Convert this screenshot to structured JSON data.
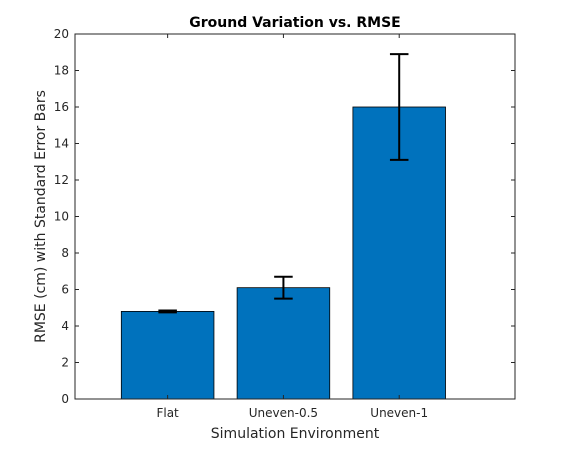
{
  "chart_data": {
    "type": "bar",
    "title": "Ground Variation vs. RMSE",
    "xlabel": "Simulation Environment",
    "ylabel": "RMSE (cm) with Standard Error Bars",
    "categories": [
      "Flat",
      "Uneven-0.5",
      "Uneven-1"
    ],
    "values": [
      4.8,
      6.1,
      16.0
    ],
    "error_low": [
      4.75,
      5.5,
      13.1
    ],
    "error_high": [
      4.85,
      6.7,
      18.9
    ],
    "ylim": [
      0,
      20
    ],
    "yticks": [
      0,
      2,
      4,
      6,
      8,
      10,
      12,
      14,
      16,
      18,
      20
    ],
    "grid": false,
    "legend": "none",
    "bar_color": "#0072BD",
    "edge_color": "#000000",
    "error_bar_color": "#000000"
  }
}
